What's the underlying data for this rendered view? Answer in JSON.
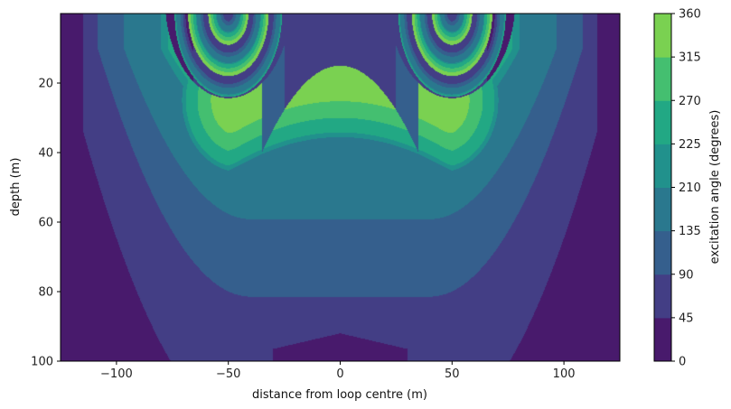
{
  "chart_data": {
    "type": "heatmap",
    "subtype": "filled-contour",
    "title": "",
    "xlabel": "distance from loop centre (m)",
    "ylabel": "depth (m)",
    "xlim": [
      -125,
      125
    ],
    "ylim": [
      100,
      0
    ],
    "y_inverted": true,
    "x_ticks": [
      -100,
      -50,
      0,
      50,
      100
    ],
    "x_tick_labels": [
      "−100",
      "−50",
      "0",
      "50",
      "100"
    ],
    "y_ticks": [
      20,
      40,
      60,
      80,
      100
    ],
    "y_tick_labels": [
      "20",
      "40",
      "60",
      "80",
      "100"
    ],
    "loop_wire_positions_m": [
      -50,
      50
    ],
    "colorbar": {
      "label": "excitation angle (degrees)",
      "levels": [
        0,
        45,
        90,
        135,
        210,
        225,
        270,
        315,
        360
      ],
      "tick_labels": [
        "0",
        "45",
        "90",
        "135",
        "210",
        "225",
        "270",
        "315",
        "360"
      ],
      "colors": [
        "#481a6c",
        "#433e85",
        "#355f8d",
        "#2a788e",
        "#21918c",
        "#22a884",
        "#44bf70",
        "#7ad151",
        "#d2e21b"
      ]
    },
    "notes_on_field": {
      "phase_at_wires": "rapid wrapping of angle near x = ±50 m at shallow depth",
      "centre_max_depth_m": 15,
      "deep_floor": "lowest band 0–45 near depth 100 m"
    }
  }
}
